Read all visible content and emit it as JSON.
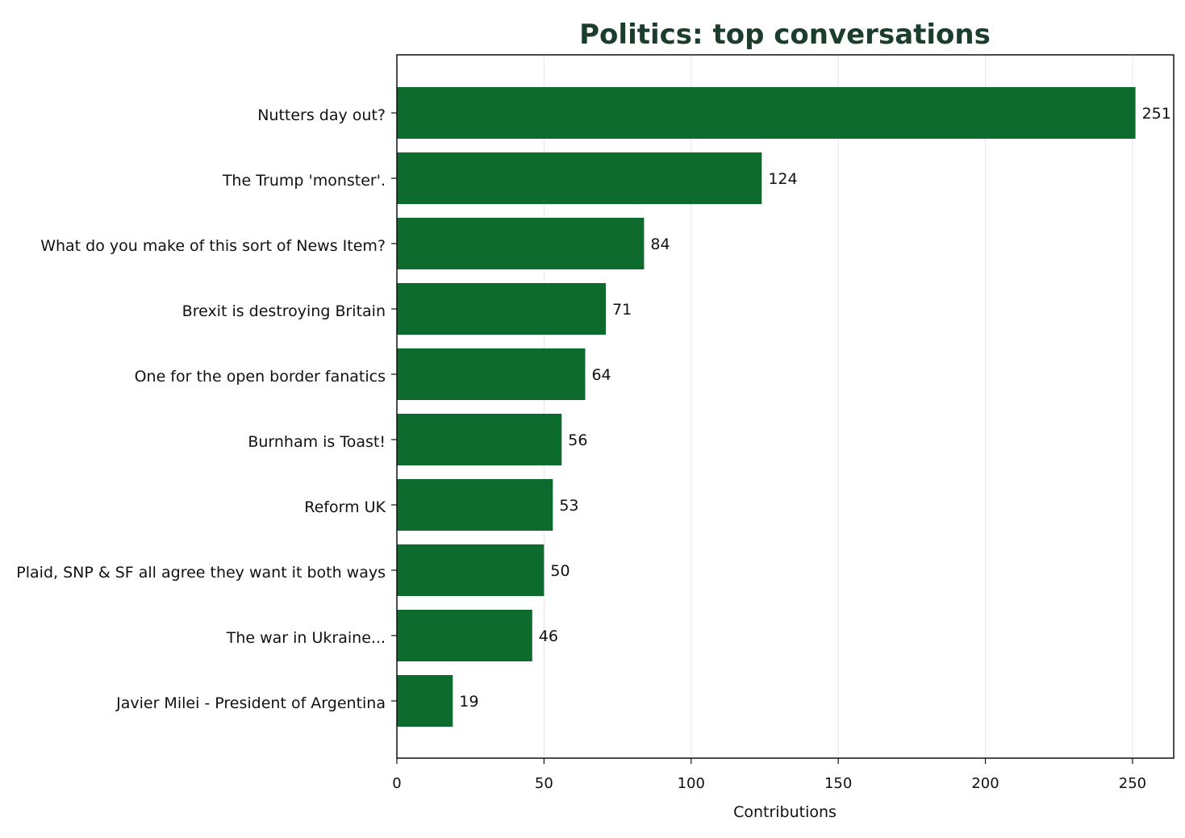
{
  "chart_data": {
    "type": "bar",
    "orientation": "horizontal",
    "title": "Politics: top conversations",
    "xlabel": "Contributions",
    "ylabel": "",
    "xlim": [
      0,
      264
    ],
    "xticks": [
      0,
      50,
      100,
      150,
      200,
      250
    ],
    "grid": true,
    "bar_color": "#0d6b2e",
    "title_color": "#1b3d2b",
    "categories": [
      "Nutters day out?",
      "The Trump 'monster'.",
      "What do you make of this sort of News Item?",
      "Brexit is destroying Britain",
      "One for the open border fanatics",
      "Burnham is Toast!",
      "Reform UK",
      "Plaid, SNP & SF all agree they want it both ways",
      "The war in Ukraine...",
      "Javier Milei - President of Argentina"
    ],
    "values": [
      251,
      124,
      84,
      71,
      64,
      56,
      53,
      50,
      46,
      19
    ]
  }
}
